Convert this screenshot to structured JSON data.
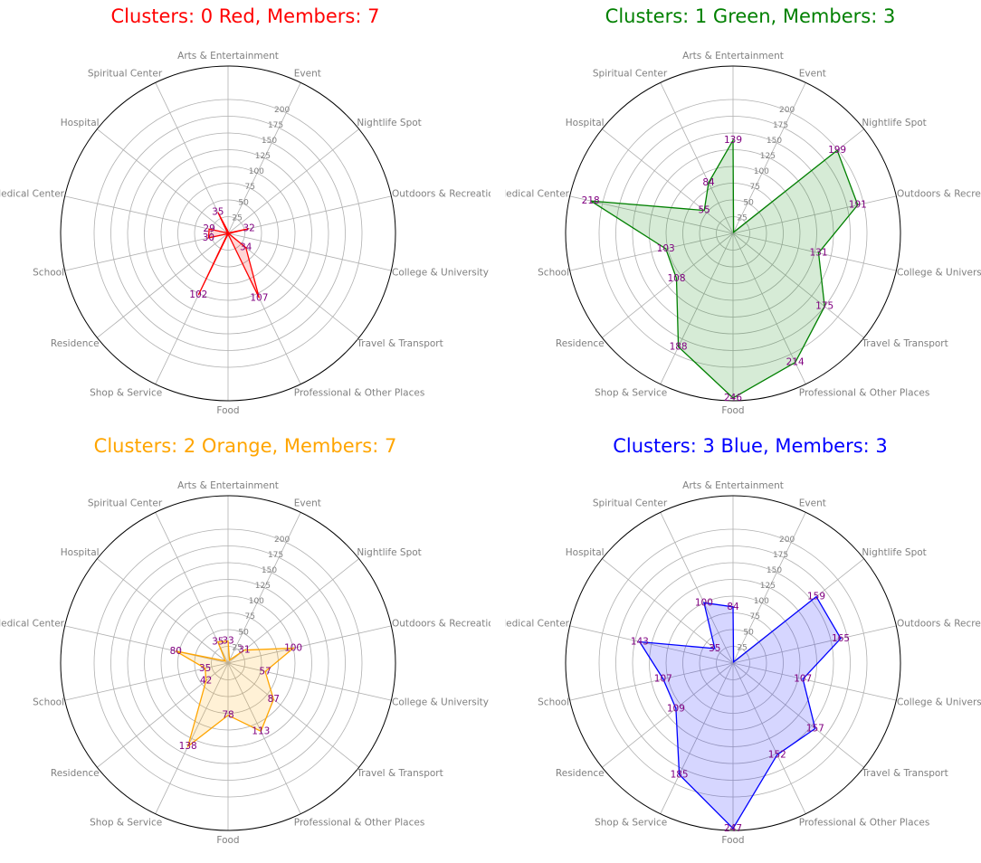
{
  "chart_data": [
    {
      "type": "radar",
      "title": "Clusters: 0 Red, Members: 7",
      "color": "#ff0000",
      "fill": "#ff0000",
      "categories": [
        "Arts & Entertainment",
        "Event",
        "Nightlife Spot",
        "Outdoors & Recreation",
        "College & University",
        "Travel & Transport",
        "Professional & Other Places",
        "Food",
        "Shop & Service",
        "Residence",
        "School",
        "Medical Center",
        "Hospital",
        "Spiritual Center"
      ],
      "values": [
        3,
        1,
        1,
        32,
        1,
        34,
        107,
        1,
        102,
        1,
        30,
        29,
        1,
        35
      ],
      "labels": [
        "",
        "",
        "",
        "32",
        "",
        "34",
        "107",
        "",
        "102",
        "",
        "30",
        "29",
        "",
        "35"
      ],
      "rticks": [
        "25",
        "50",
        "75",
        "100",
        "125",
        "150",
        "175",
        "200"
      ],
      "rmax": 250
    },
    {
      "type": "radar",
      "title": "Clusters: 1 Green, Members: 3",
      "color": "#008000",
      "fill": "#008000",
      "categories": [
        "Arts & Entertainment",
        "Event",
        "Nightlife Spot",
        "Outdoors & Recreation",
        "College & University",
        "Travel & Transport",
        "Professional & Other Places",
        "Food",
        "Shop & Service",
        "Residence",
        "School",
        "Medical Center",
        "Hospital",
        "Spiritual Center"
      ],
      "values": [
        139,
        2,
        199,
        191,
        131,
        175,
        214,
        246,
        188,
        108,
        103,
        218,
        55,
        84
      ],
      "labels": [
        "139",
        "",
        "199",
        "191",
        "131",
        "175",
        "214",
        "246",
        "188",
        "108",
        "103",
        "218",
        "55",
        "84"
      ],
      "rticks": [
        "25",
        "50",
        "75",
        "100",
        "125",
        "150",
        "175",
        "200"
      ],
      "rmax": 250
    },
    {
      "type": "radar",
      "title": "Clusters: 2 Orange, Members: 7",
      "color": "#ffa500",
      "fill": "#ffa500",
      "categories": [
        "Arts & Entertainment",
        "Event",
        "Nightlife Spot",
        "Outdoors & Recreation",
        "College & University",
        "Travel & Transport",
        "Professional & Other Places",
        "Food",
        "Shop & Service",
        "Residence",
        "School",
        "Medical Center",
        "Hospital",
        "Spiritual Center"
      ],
      "values": [
        33,
        5,
        31,
        100,
        57,
        87,
        113,
        78,
        138,
        42,
        35,
        80,
        5,
        35
      ],
      "labels": [
        "33",
        "",
        "31",
        "100",
        "57",
        "87",
        "113",
        "78",
        "138",
        "42",
        "35",
        "80",
        "",
        "35"
      ],
      "rticks": [
        "25",
        "50",
        "75",
        "100",
        "125",
        "150",
        "175",
        "200"
      ],
      "rmax": 250
    },
    {
      "type": "radar",
      "title": "Clusters: 3 Blue, Members: 3",
      "color": "#0000ff",
      "fill": "#0000ff",
      "categories": [
        "Arts & Entertainment",
        "Event",
        "Nightlife Spot",
        "Outdoors & Recreation",
        "College & University",
        "Travel & Transport",
        "Professional & Other Places",
        "Food",
        "Shop & Service",
        "Residence",
        "School",
        "Medical Center",
        "Hospital",
        "Spiritual Center"
      ],
      "values": [
        84,
        2,
        159,
        165,
        107,
        157,
        152,
        247,
        185,
        109,
        107,
        143,
        35,
        100
      ],
      "labels": [
        "84",
        "",
        "159",
        "165",
        "107",
        "157",
        "152",
        "247",
        "185",
        "109",
        "107",
        "143",
        "35",
        "100"
      ],
      "rticks": [
        "25",
        "50",
        "75",
        "100",
        "125",
        "150",
        "175",
        "200"
      ],
      "rmax": 250
    }
  ]
}
